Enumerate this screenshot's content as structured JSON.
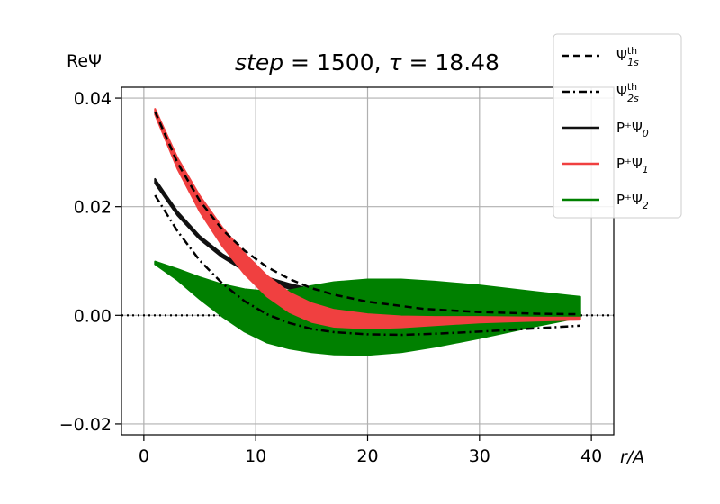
{
  "chart_data": {
    "type": "line",
    "title": "step = 1500, τ = 18.48",
    "title_parts": {
      "step_label": "step",
      "step_value": "1500",
      "tau_label": "τ",
      "tau_value": "18.48"
    },
    "ylabel": "ReΨ",
    "xlabel": "r/A",
    "xlim": [
      -2,
      42
    ],
    "ylim": [
      -0.022,
      0.042
    ],
    "xticks": [
      0,
      10,
      20,
      30,
      40
    ],
    "xtick_labels": [
      "0",
      "10",
      "20",
      "30",
      "40"
    ],
    "yticks": [
      -0.02,
      0.0,
      0.02,
      0.04
    ],
    "ytick_labels": [
      "−0.02",
      "0.00",
      "0.02",
      "0.04"
    ],
    "grid": true,
    "legend_position": "upper right, outside axes",
    "legend": [
      {
        "label": "Ψ",
        "sub": "1s",
        "sup": "th"
      },
      {
        "label": "Ψ",
        "sub": "2s",
        "sup": "th"
      },
      {
        "label": "P⁺Ψ",
        "sub": "0",
        "sup": ""
      },
      {
        "label": "P⁺Ψ",
        "sub": "1",
        "sup": ""
      },
      {
        "label": "P⁺Ψ",
        "sub": "2",
        "sup": ""
      }
    ],
    "series": [
      {
        "name": "Ψ_1s^th",
        "style": "dashed",
        "color": "#000000",
        "x": [
          1,
          3,
          5,
          7,
          9,
          11,
          13,
          15,
          17,
          20,
          25,
          30,
          35,
          39
        ],
        "y": [
          0.0375,
          0.0281,
          0.0211,
          0.0158,
          0.0119,
          0.0089,
          0.0067,
          0.005,
          0.0038,
          0.0025,
          0.0012,
          0.0006,
          0.0003,
          0.0002
        ]
      },
      {
        "name": "Ψ_2s^th",
        "style": "dashdot",
        "color": "#000000",
        "x": [
          1,
          3,
          5,
          7,
          9,
          11,
          13,
          15,
          17,
          20,
          23,
          26,
          30,
          35,
          39
        ],
        "y": [
          0.0221,
          0.0155,
          0.0101,
          0.0059,
          0.0026,
          0.0002,
          -0.0014,
          -0.0025,
          -0.0031,
          -0.0035,
          -0.0036,
          -0.0034,
          -0.003,
          -0.0024,
          -0.0019
        ]
      },
      {
        "name": "P⁺Ψ_0",
        "style": "band",
        "color": "#111111",
        "x": [
          1,
          3,
          5,
          7,
          9,
          11,
          13,
          15,
          17,
          20,
          25,
          30,
          35,
          39
        ],
        "y_upper": [
          0.0251,
          0.0191,
          0.0146,
          0.0113,
          0.0088,
          0.007,
          0.0058,
          0.0048,
          0.004,
          0.0032,
          0.0022,
          0.0015,
          0.001,
          0.0006
        ],
        "y_lower": [
          0.0243,
          0.0184,
          0.014,
          0.0107,
          0.0082,
          0.0063,
          0.0049,
          0.0038,
          0.003,
          0.0021,
          0.0011,
          0.0005,
          0.0001,
          0.0
        ]
      },
      {
        "name": "P⁺Ψ_1",
        "style": "band",
        "color": "#f04040",
        "x": [
          1,
          3,
          5,
          7,
          9,
          11,
          13,
          15,
          17,
          20,
          23,
          26,
          30,
          35,
          39
        ],
        "y_upper": [
          0.038,
          0.029,
          0.022,
          0.0162,
          0.0114,
          0.0073,
          0.0042,
          0.0022,
          0.001,
          0.0002,
          -0.0002,
          -0.0003,
          -0.0003,
          -0.0004,
          -0.0004
        ],
        "y_lower": [
          0.037,
          0.027,
          0.0191,
          0.0128,
          0.0076,
          0.0035,
          0.0006,
          -0.0012,
          -0.0021,
          -0.0024,
          -0.0022,
          -0.0018,
          -0.0013,
          -0.001,
          -0.0008
        ]
      },
      {
        "name": "P⁺Ψ_2",
        "style": "band",
        "color": "#008000",
        "x": [
          1,
          3,
          5,
          7,
          9,
          11,
          13,
          15,
          17,
          20,
          23,
          26,
          30,
          35,
          39
        ],
        "y_upper": [
          0.0099,
          0.0085,
          0.007,
          0.0057,
          0.0048,
          0.0044,
          0.0046,
          0.0054,
          0.0061,
          0.0066,
          0.0066,
          0.0062,
          0.0055,
          0.0043,
          0.0034
        ],
        "y_lower": [
          0.0094,
          0.0065,
          0.003,
          -0.0002,
          -0.003,
          -0.005,
          -0.0061,
          -0.0068,
          -0.0072,
          -0.0073,
          -0.0068,
          -0.0058,
          -0.0042,
          -0.002,
          -0.0004
        ]
      },
      {
        "name": "zero",
        "style": "dotted",
        "color": "#000000",
        "x": [
          -2,
          42
        ],
        "y": [
          0,
          0
        ]
      }
    ]
  }
}
